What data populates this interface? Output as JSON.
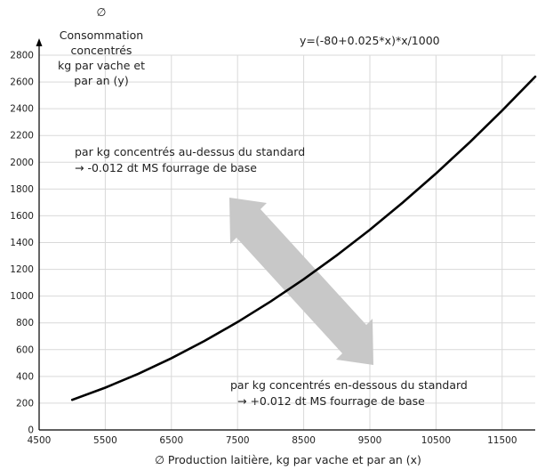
{
  "chart_data": {
    "type": "line",
    "title": "y=(-80+0.025*x)*x/1000",
    "xlabel": "∅ Production laitière, kg par vache et par an (x)",
    "ylabel_lines": [
      "∅",
      "Consommation",
      "concentrés",
      "kg par vache et",
      "par an (y)"
    ],
    "xlim": [
      4500,
      12000
    ],
    "ylim": [
      0,
      2800
    ],
    "xticks": [
      4500,
      5500,
      6500,
      7500,
      8500,
      9500,
      10500,
      11500
    ],
    "yticks": [
      0,
      200,
      400,
      600,
      800,
      1000,
      1200,
      1400,
      1600,
      1800,
      2000,
      2200,
      2400,
      2600,
      2800
    ],
    "grid": true,
    "series": [
      {
        "x": [
          5000,
          5500,
          6000,
          6500,
          7000,
          7500,
          8000,
          8500,
          9000,
          9500,
          10000,
          10500,
          11000,
          11500,
          12000
        ],
        "y": [
          225,
          316,
          420,
          536,
          665,
          806,
          960,
          1126,
          1305,
          1496,
          1700,
          1916,
          2145,
          2386,
          2640
        ],
        "color": "#000000"
      }
    ],
    "annotations": {
      "above_line1": "par kg concentrés au-dessus du standard",
      "above_line2": "→ -0.012 dt MS fourrage de base",
      "below_line1": "par kg concentrés en-dessous du standard",
      "below_line2": "→ +0.012 dt MS fourrage de base"
    },
    "arrow_color": "#c8c8c8"
  }
}
